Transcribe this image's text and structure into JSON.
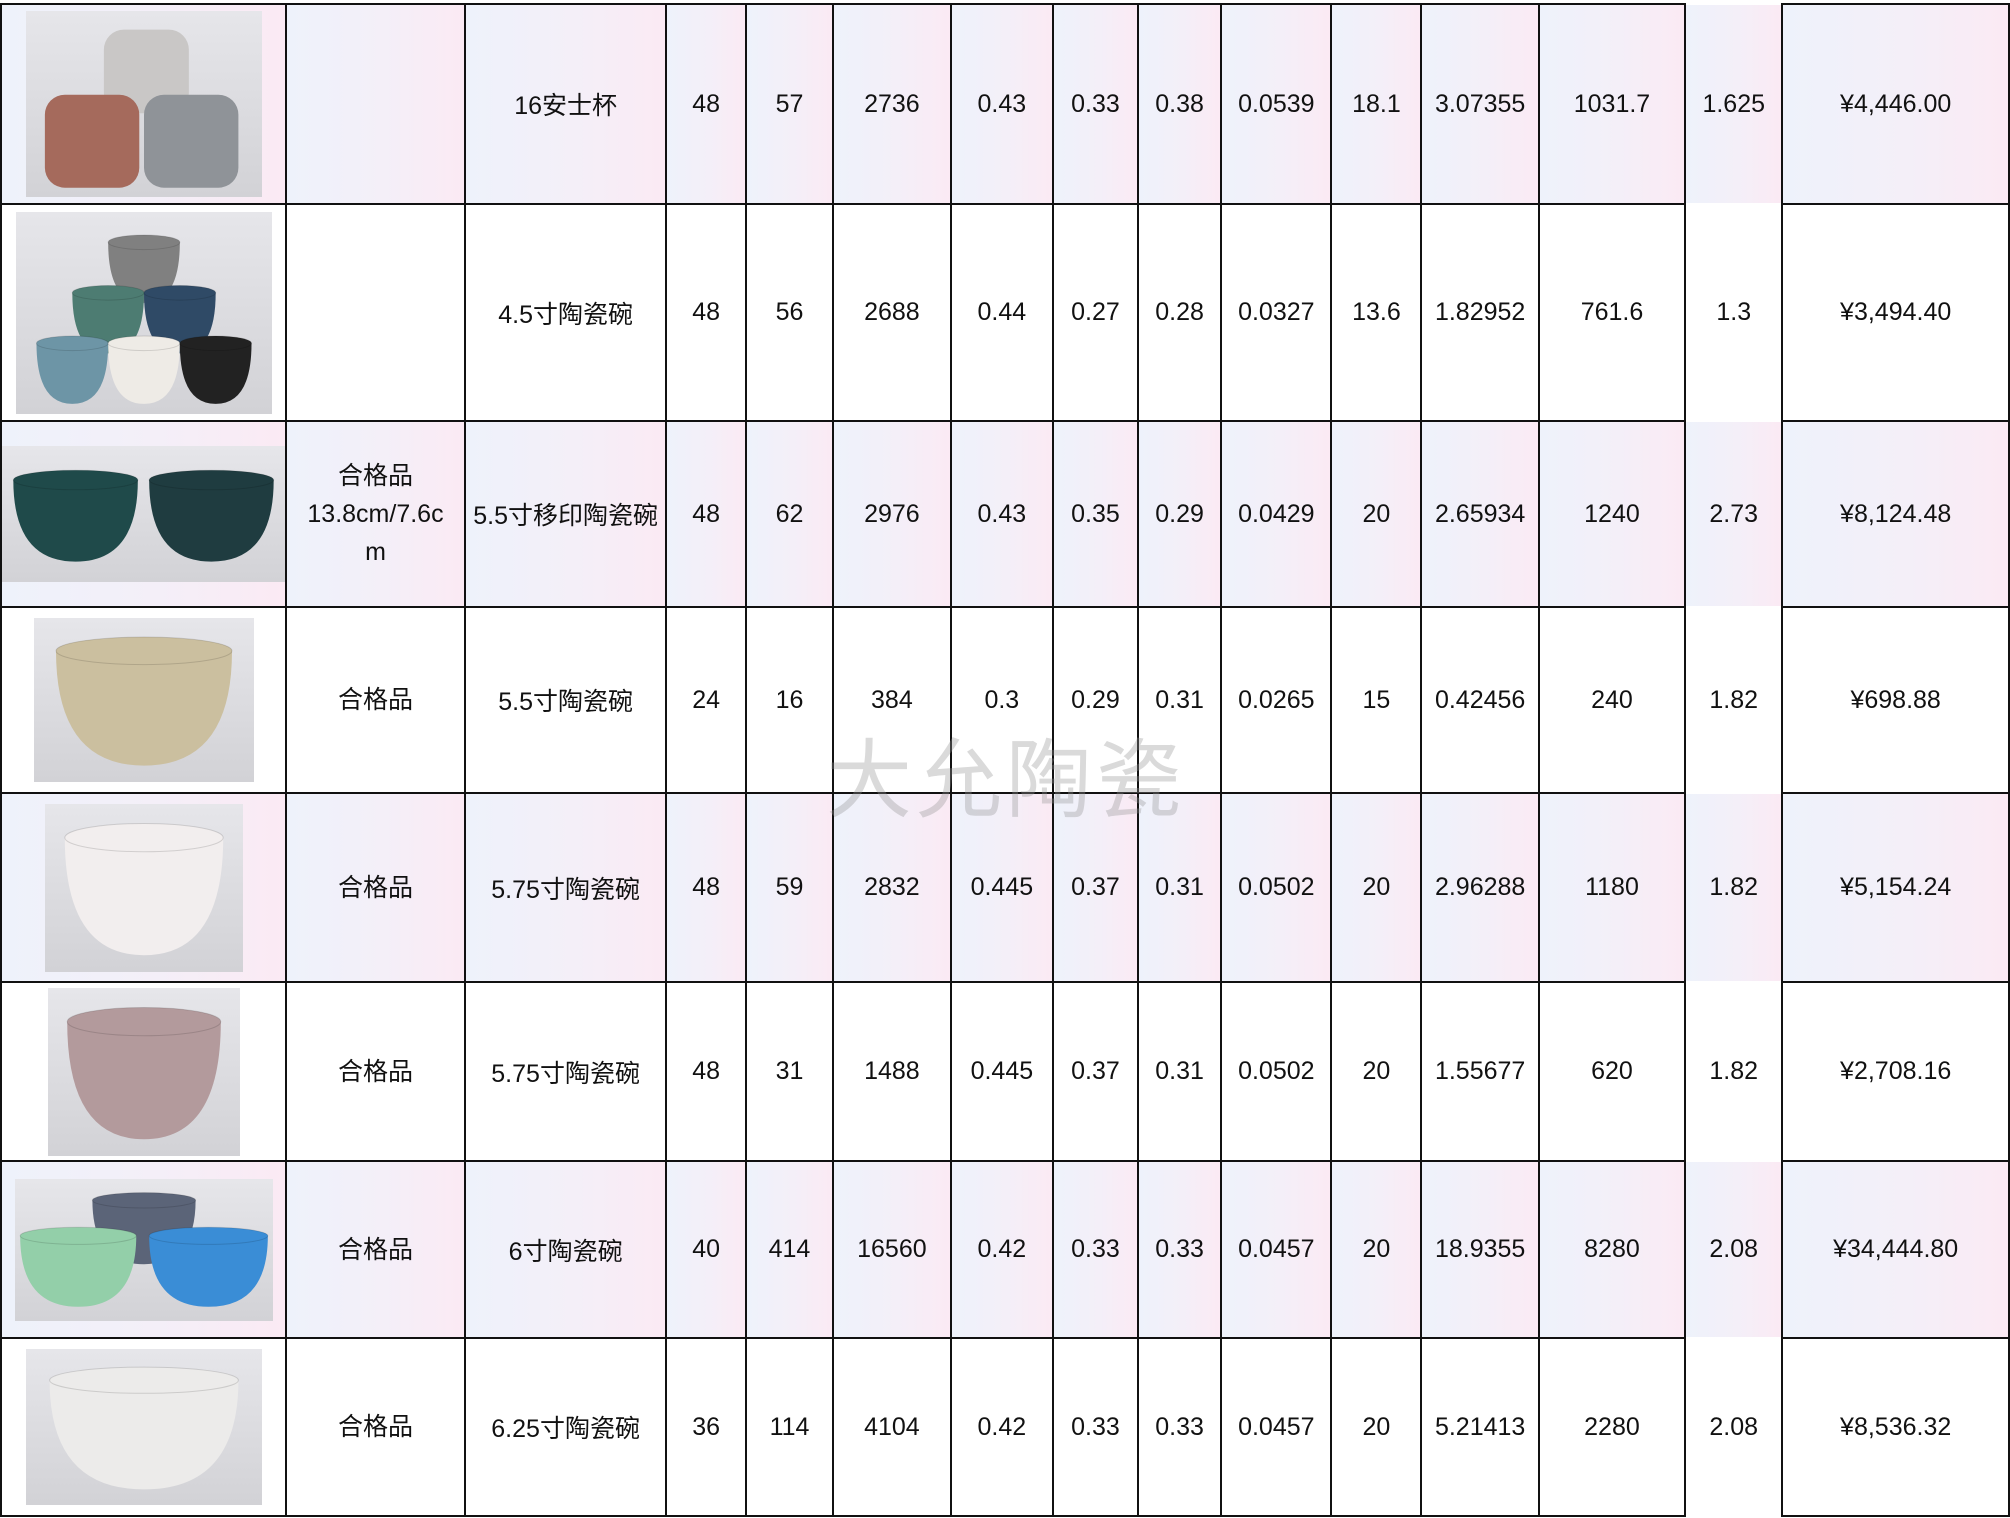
{
  "watermark": "大允陶瓷",
  "rows": [
    {
      "image": "mug-set-icon",
      "colors": [
        "#c9c7c6",
        "#a56a5c",
        "#8f9398"
      ],
      "grade": "",
      "name": "16安士杯",
      "c1": "48",
      "c2": "57",
      "c3": "2736",
      "c4": "0.43",
      "c5": "0.33",
      "c6": "0.38",
      "c7": "0.0539",
      "c8": "18.1",
      "c9": "3.07355",
      "c10": "1031.7",
      "c11": "1.625",
      "price": "¥4,446.00",
      "tint": true
    },
    {
      "image": "bowl-pyramid-icon",
      "colors": [
        "#808080",
        "#4d7c72",
        "#2f4a66",
        "#6d95a6",
        "#eeebe6",
        "#222222"
      ],
      "grade": "",
      "name": "4.5寸陶瓷碗",
      "c1": "48",
      "c2": "56",
      "c3": "2688",
      "c4": "0.44",
      "c5": "0.27",
      "c6": "0.28",
      "c7": "0.0327",
      "c8": "13.6",
      "c9": "1.82952",
      "c10": "761.6",
      "c11": "1.3",
      "price": "¥3,494.40",
      "tint": false
    },
    {
      "image": "engraved-bowl-pair-icon",
      "colors": [
        "#1f4a4a",
        "#1f3c40"
      ],
      "grade": "合格品",
      "grade2": "13.8cm/7.6c",
      "grade3": "m",
      "name": "5.5寸移印陶瓷碗",
      "c1": "48",
      "c2": "62",
      "c3": "2976",
      "c4": "0.43",
      "c5": "0.35",
      "c6": "0.29",
      "c7": "0.0429",
      "c8": "20",
      "c9": "2.65934",
      "c10": "1240",
      "c11": "2.73",
      "price": "¥8,124.48",
      "tint": true
    },
    {
      "image": "speckled-bowl-icon",
      "colors": [
        "#cbbf9f"
      ],
      "grade": "合格品",
      "name": "5.5寸陶瓷碗",
      "c1": "24",
      "c2": "16",
      "c3": "384",
      "c4": "0.3",
      "c5": "0.29",
      "c6": "0.31",
      "c7": "0.0265",
      "c8": "15",
      "c9": "0.42456",
      "c10": "240",
      "c11": "1.82",
      "price": "¥698.88",
      "tint": false
    },
    {
      "image": "striped-bowl-icon",
      "colors": [
        "#f2eeee"
      ],
      "grade": "合格品",
      "name": "5.75寸陶瓷碗",
      "c1": "48",
      "c2": "59",
      "c3": "2832",
      "c4": "0.445",
      "c5": "0.37",
      "c6": "0.31",
      "c7": "0.0502",
      "c8": "20",
      "c9": "2.96288",
      "c10": "1180",
      "c11": "1.82",
      "price": "¥5,154.24",
      "tint": true
    },
    {
      "image": "pink-speckled-bowl-icon",
      "colors": [
        "#b39a9c"
      ],
      "grade": "合格品",
      "name": "5.75寸陶瓷碗",
      "c1": "48",
      "c2": "31",
      "c3": "1488",
      "c4": "0.445",
      "c5": "0.37",
      "c6": "0.31",
      "c7": "0.0502",
      "c8": "20",
      "c9": "1.55677",
      "c10": "620",
      "c11": "1.82",
      "price": "¥2,708.16",
      "tint": false
    },
    {
      "image": "bowl-trio-icon",
      "colors": [
        "#5b6478",
        "#93cfa9",
        "#3a8dd6"
      ],
      "grade": "合格品",
      "name": "6寸陶瓷碗",
      "c1": "40",
      "c2": "414",
      "c3": "16560",
      "c4": "0.42",
      "c5": "0.33",
      "c6": "0.33",
      "c7": "0.0457",
      "c8": "20",
      "c9": "18.9355",
      "c10": "8280",
      "c11": "2.08",
      "price": "¥34,444.80",
      "tint": true
    },
    {
      "image": "white-speckled-bowl-icon",
      "colors": [
        "#ecebea"
      ],
      "grade": "合格品",
      "name": "6.25寸陶瓷碗",
      "c1": "36",
      "c2": "114",
      "c3": "4104",
      "c4": "0.42",
      "c5": "0.33",
      "c6": "0.33",
      "c7": "0.0457",
      "c8": "20",
      "c9": "5.21413",
      "c10": "2280",
      "c11": "2.08",
      "price": "¥8,536.32",
      "tint": false
    }
  ]
}
